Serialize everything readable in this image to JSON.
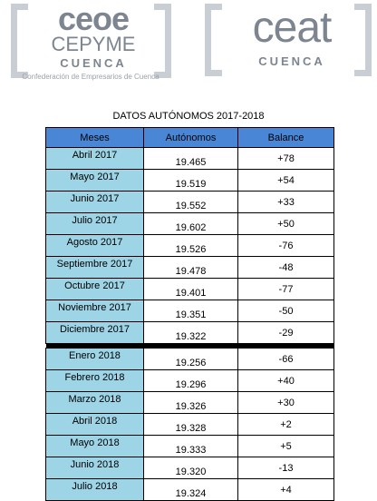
{
  "logos": {
    "left": {
      "line1": "ceoe",
      "line2": "CEPYME",
      "line3": "CUENCA",
      "caption": "Confederación de Empresarios de Cuenca"
    },
    "right": {
      "line1": "ceat",
      "line2": "CUENCA"
    }
  },
  "title": "DATOS AUTÓNOMOS 2017-2018",
  "table": {
    "headers": [
      "Meses",
      "Autónomos",
      "Balance"
    ],
    "group_2017": [
      {
        "month": "Abril 2017",
        "autonomos": "19.465",
        "balance": "+78"
      },
      {
        "month": "Mayo 2017",
        "autonomos": "19.519",
        "balance": "+54"
      },
      {
        "month": "Junio 2017",
        "autonomos": "19.552",
        "balance": "+33"
      },
      {
        "month": "Julio 2017",
        "autonomos": "19.602",
        "balance": "+50"
      },
      {
        "month": "Agosto 2017",
        "autonomos": "19.526",
        "balance": "-76"
      },
      {
        "month": "Septiembre 2017",
        "autonomos": "19.478",
        "balance": "-48"
      },
      {
        "month": "Octubre 2017",
        "autonomos": "19.401",
        "balance": "-77"
      },
      {
        "month": "Noviembre 2017",
        "autonomos": "19.351",
        "balance": "-50"
      },
      {
        "month": "Diciembre 2017",
        "autonomos": "19.322",
        "balance": "-29"
      }
    ],
    "group_2018": [
      {
        "month": "Enero 2018",
        "autonomos": "19.256",
        "balance": "-66"
      },
      {
        "month": "Febrero 2018",
        "autonomos": "19.296",
        "balance": "+40"
      },
      {
        "month": "Marzo 2018",
        "autonomos": "19.326",
        "balance": "+30"
      },
      {
        "month": "Abril 2018",
        "autonomos": "19.328",
        "balance": "+2"
      },
      {
        "month": "Mayo 2018",
        "autonomos": "19.333",
        "balance": "+5"
      },
      {
        "month": "Junio 2018",
        "autonomos": "19.320",
        "balance": "-13"
      },
      {
        "month": "Julio 2018",
        "autonomos": "19.324",
        "balance": "+4"
      }
    ]
  },
  "colors": {
    "header_bg": "#4a86d6",
    "month_bg": "#9dd4e6",
    "logo_gray": "#7d8591"
  }
}
